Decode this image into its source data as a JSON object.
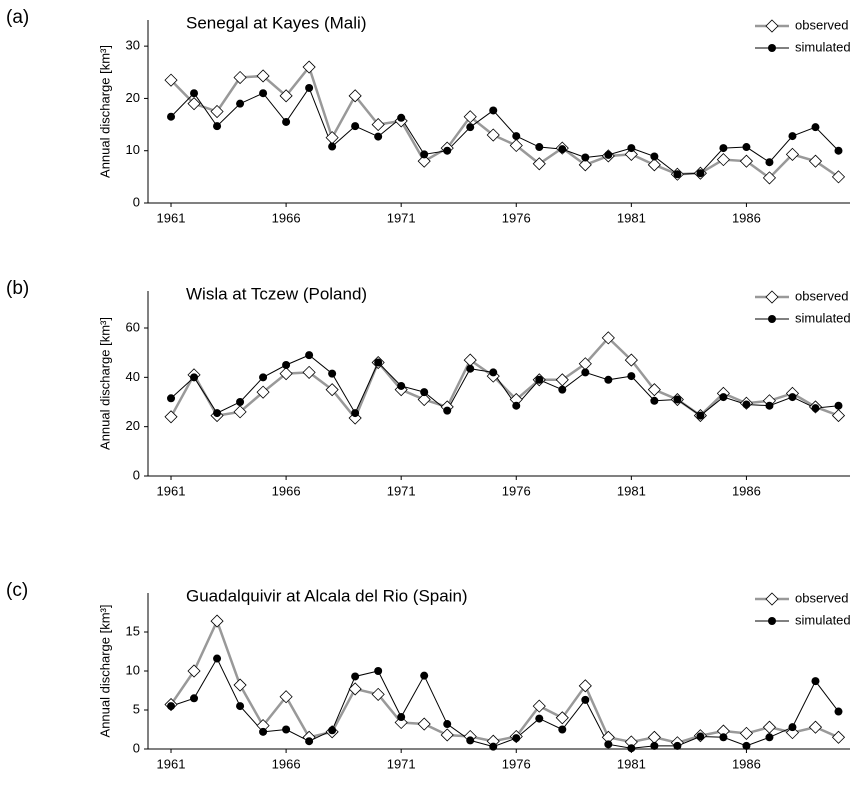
{
  "chart_data": [
    {
      "type": "line",
      "panel": "(a)",
      "title": "Senegal at Kayes (Mali)",
      "ylabel": "Annual discharge [km³]",
      "x": [
        1961,
        1962,
        1963,
        1964,
        1965,
        1966,
        1967,
        1968,
        1969,
        1970,
        1971,
        1972,
        1973,
        1974,
        1975,
        1976,
        1977,
        1978,
        1979,
        1980,
        1981,
        1982,
        1983,
        1984,
        1985,
        1986,
        1987,
        1988,
        1989,
        1990
      ],
      "series": [
        {
          "name": "observed",
          "color": "#999999",
          "marker": "diamond",
          "values": [
            23.5,
            19,
            17.5,
            24,
            24.3,
            20.5,
            26,
            12.5,
            20.5,
            15,
            15.7,
            8,
            10.5,
            16.5,
            13,
            11,
            7.5,
            10.5,
            7.3,
            9,
            9.3,
            7.3,
            5.5,
            5.7,
            8.3,
            8,
            4.8,
            9.3,
            8,
            5
          ]
        },
        {
          "name": "simulated",
          "color": "#000000",
          "marker": "circle",
          "values": [
            16.5,
            21,
            14.7,
            19,
            21,
            15.5,
            22,
            10.8,
            14.7,
            12.7,
            16.3,
            9.3,
            10,
            14.5,
            17.7,
            12.8,
            10.7,
            10.3,
            8.7,
            9.2,
            10.5,
            8.9,
            5.5,
            5.7,
            10.5,
            10.7,
            7.8,
            12.8,
            14.5,
            10
          ]
        }
      ],
      "xlim": [
        1960,
        1990.5
      ],
      "xticks": [
        1961,
        1966,
        1971,
        1976,
        1981,
        1986
      ],
      "ylim": [
        0,
        35
      ],
      "yticks": [
        0,
        10,
        20,
        30
      ],
      "legend": "upper right"
    },
    {
      "type": "line",
      "panel": "(b)",
      "title": "Wisla at Tczew (Poland)",
      "ylabel": "Annual discharge [km³]",
      "x": [
        1961,
        1962,
        1963,
        1964,
        1965,
        1966,
        1967,
        1968,
        1969,
        1970,
        1971,
        1972,
        1973,
        1974,
        1975,
        1976,
        1977,
        1978,
        1979,
        1980,
        1981,
        1982,
        1983,
        1984,
        1985,
        1986,
        1987,
        1988,
        1989,
        1990
      ],
      "series": [
        {
          "name": "observed",
          "color": "#999999",
          "marker": "diamond",
          "values": [
            24,
            41,
            24.5,
            26,
            34,
            41.5,
            42,
            35,
            23.5,
            46,
            35,
            31,
            28,
            47,
            40.5,
            31,
            39,
            39,
            45.5,
            56,
            47,
            35,
            31,
            24.5,
            33.5,
            29.5,
            30.5,
            33.5,
            28,
            24.5
          ]
        },
        {
          "name": "simulated",
          "color": "#000000",
          "marker": "circle",
          "values": [
            31.5,
            40,
            25.5,
            30,
            40,
            45,
            49,
            41.5,
            25.5,
            46,
            36.5,
            34,
            26.5,
            43.5,
            42,
            28.5,
            39,
            35,
            42,
            39,
            40.5,
            30.5,
            31,
            24.5,
            32,
            29,
            28.5,
            32,
            27.5,
            28.5
          ]
        }
      ],
      "xlim": [
        1960,
        1990.5
      ],
      "xticks": [
        1961,
        1966,
        1971,
        1976,
        1981,
        1986
      ],
      "ylim": [
        0,
        75
      ],
      "yticks": [
        0,
        20,
        40,
        60
      ],
      "legend": "upper right"
    },
    {
      "type": "line",
      "panel": "(c)",
      "title": "Guadalquivir at Alcala del Rio (Spain)",
      "ylabel": "Annual discharge [km³]",
      "x": [
        1961,
        1962,
        1963,
        1964,
        1965,
        1966,
        1967,
        1968,
        1969,
        1970,
        1971,
        1972,
        1973,
        1974,
        1975,
        1976,
        1977,
        1978,
        1979,
        1980,
        1981,
        1982,
        1983,
        1984,
        1985,
        1986,
        1987,
        1988,
        1989,
        1990
      ],
      "series": [
        {
          "name": "observed",
          "color": "#999999",
          "marker": "diamond",
          "values": [
            5.7,
            10,
            16.4,
            8.2,
            3,
            6.7,
            1.5,
            2.2,
            7.7,
            7,
            3.4,
            3.2,
            1.8,
            1.6,
            1,
            1.6,
            5.5,
            4,
            8.1,
            1.5,
            0.9,
            1.5,
            0.8,
            1.7,
            2.3,
            2,
            2.8,
            2.1,
            2.8,
            1.5
          ]
        },
        {
          "name": "simulated",
          "color": "#000000",
          "marker": "circle",
          "values": [
            5.5,
            6.5,
            11.6,
            5.5,
            2.2,
            2.5,
            1,
            2.4,
            9.3,
            10,
            4.1,
            9.4,
            3.2,
            1.1,
            0.3,
            1.4,
            3.9,
            2.5,
            6.3,
            0.6,
            0.1,
            0.4,
            0.4,
            1.6,
            1.5,
            0.4,
            1.5,
            2.8,
            8.7,
            4.8
          ]
        }
      ],
      "xlim": [
        1960,
        1990.5
      ],
      "xticks": [
        1961,
        1966,
        1971,
        1976,
        1981,
        1986
      ],
      "ylim": [
        0,
        20
      ],
      "yticks": [
        0,
        5,
        10,
        15
      ],
      "legend": "upper right"
    }
  ]
}
